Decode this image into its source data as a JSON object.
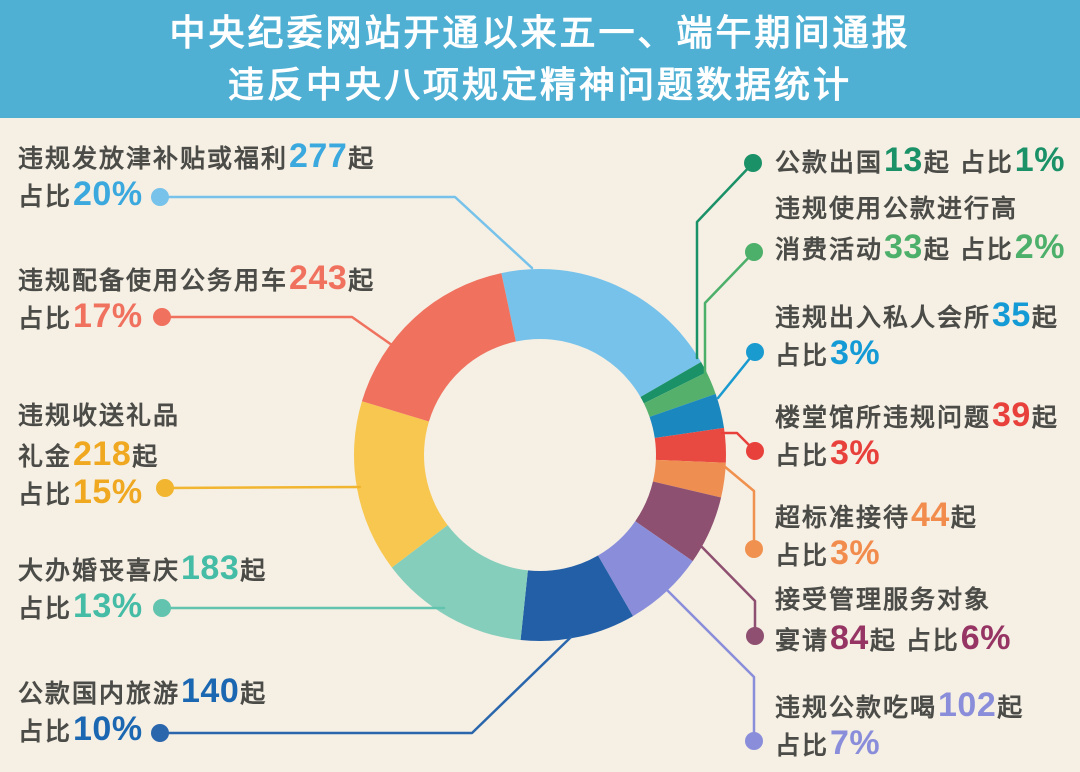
{
  "title": {
    "line1": "中央纪委网站开通以来五一、端午期间通报",
    "line2": "违反中央八项规定精神问题数据统计"
  },
  "colors": {
    "banner_bg": "#4FB0D4",
    "page_bg": "#F5EFE4",
    "body_text": "#4B4B47"
  },
  "chart_data": {
    "type": "pie",
    "subtype": "donut",
    "title": "中央纪委网站开通以来五一、端午期间通报违反中央八项规定精神问题数据统计",
    "unit": "起",
    "start_angle_deg": -12,
    "direction": "clockwise",
    "segments": [
      {
        "id": "subsidies",
        "label": "违规发放津补贴或福利",
        "cases": 277,
        "percent": 20,
        "color": "#76C2EA"
      },
      {
        "id": "abroad-trips",
        "label": "公款出国",
        "cases": 13,
        "percent": 1,
        "color": "#1B9168"
      },
      {
        "id": "luxury-consumption",
        "label": "违规使用公款进行高消费活动",
        "cases": 33,
        "percent": 2,
        "color": "#55B06B"
      },
      {
        "id": "private-clubs",
        "label": "违规出入私人会所",
        "cases": 35,
        "percent": 3,
        "color": "#1A88BF"
      },
      {
        "id": "official-buildings",
        "label": "楼堂馆所违规问题",
        "cases": 39,
        "percent": 3,
        "color": "#E84A42"
      },
      {
        "id": "excessive-reception",
        "label": "超标准接待",
        "cases": 44,
        "percent": 3,
        "color": "#EF8E51"
      },
      {
        "id": "banquets",
        "label": "接受管理服务对象宴请",
        "cases": 84,
        "percent": 6,
        "color": "#8E5070"
      },
      {
        "id": "public-dining",
        "label": "违规公款吃喝",
        "cases": 102,
        "percent": 7,
        "color": "#8A8EDA"
      },
      {
        "id": "domestic-travel",
        "label": "公款国内旅游",
        "cases": 140,
        "percent": 10,
        "color": "#235FA7"
      },
      {
        "id": "weddings-funerals",
        "label": "大办婚丧喜庆",
        "cases": 183,
        "percent": 13,
        "color": "#85CEBB"
      },
      {
        "id": "gifts-money",
        "label": "违规收送礼品礼金",
        "cases": 218,
        "percent": 15,
        "color": "#F8C74F"
      },
      {
        "id": "official-cars",
        "label": "违规配备使用公务用车",
        "cases": 243,
        "percent": 17,
        "color": "#F0715E"
      }
    ]
  },
  "callouts": [
    {
      "id": "subsidies",
      "side": "left",
      "accent": "#3BA8DE",
      "line_color": "#76C2EA",
      "lines": [
        [
          {
            "t": "违规发放津补贴或福利"
          },
          {
            "t": "277",
            "big": true
          },
          {
            "t": "起"
          }
        ],
        [
          {
            "t": "占比"
          },
          {
            "t": "20%",
            "big": true
          }
        ]
      ]
    },
    {
      "id": "official-cars",
      "side": "left",
      "accent": "#F0715E",
      "line_color": "#F0715E",
      "lines": [
        [
          {
            "t": "违规配备使用公务用车"
          },
          {
            "t": "243",
            "big": true
          },
          {
            "t": "起"
          }
        ],
        [
          {
            "t": "占比"
          },
          {
            "t": "17%",
            "big": true
          }
        ]
      ]
    },
    {
      "id": "gifts-money",
      "side": "left",
      "accent": "#EFA81F",
      "line_color": "#F2B52F",
      "lines": [
        [
          {
            "t": "违规收送礼品"
          }
        ],
        [
          {
            "t": "礼金"
          },
          {
            "t": "218",
            "big": true
          },
          {
            "t": "起"
          }
        ],
        [
          {
            "t": "占比"
          },
          {
            "t": "15%",
            "big": true
          }
        ]
      ]
    },
    {
      "id": "weddings-funerals",
      "side": "left",
      "accent": "#45BCA5",
      "line_color": "#62C4AE",
      "lines": [
        [
          {
            "t": "大办婚丧喜庆"
          },
          {
            "t": "183",
            "big": true
          },
          {
            "t": "起"
          }
        ],
        [
          {
            "t": "占比"
          },
          {
            "t": "13%",
            "big": true
          }
        ]
      ]
    },
    {
      "id": "domestic-travel",
      "side": "left",
      "accent": "#1B67B1",
      "line_color": "#2A66AC",
      "lines": [
        [
          {
            "t": "公款国内旅游"
          },
          {
            "t": "140",
            "big": true
          },
          {
            "t": "起"
          }
        ],
        [
          {
            "t": "占比"
          },
          {
            "t": "10%",
            "big": true
          }
        ]
      ]
    },
    {
      "id": "abroad-trips",
      "side": "right",
      "accent": "#1B9168",
      "line_color": "#1B9168",
      "lines": [
        [
          {
            "t": "公款出国"
          },
          {
            "t": "13",
            "big": true
          },
          {
            "t": "起 占比"
          },
          {
            "t": "1%",
            "big": true
          }
        ]
      ]
    },
    {
      "id": "luxury-consumption",
      "side": "right",
      "accent": "#4CAF6A",
      "line_color": "#4CAF6A",
      "lines": [
        [
          {
            "t": "违规使用公款进行高"
          }
        ],
        [
          {
            "t": "消费活动"
          },
          {
            "t": "33",
            "big": true
          },
          {
            "t": "起 占比"
          },
          {
            "t": "2%",
            "big": true
          }
        ]
      ]
    },
    {
      "id": "private-clubs",
      "side": "right",
      "accent": "#149BD6",
      "line_color": "#1A9BD0",
      "lines": [
        [
          {
            "t": "违规出入私人会所"
          },
          {
            "t": "35",
            "big": true
          },
          {
            "t": "起"
          }
        ],
        [
          {
            "t": "占比"
          },
          {
            "t": "3%",
            "big": true
          }
        ]
      ]
    },
    {
      "id": "official-buildings",
      "side": "right",
      "accent": "#E8413C",
      "line_color": "#E8413C",
      "lines": [
        [
          {
            "t": "楼堂馆所违规问题"
          },
          {
            "t": "39",
            "big": true
          },
          {
            "t": "起"
          }
        ],
        [
          {
            "t": "占比"
          },
          {
            "t": "3%",
            "big": true
          }
        ]
      ]
    },
    {
      "id": "excessive-reception",
      "side": "right",
      "accent": "#F28C4D",
      "line_color": "#F0914F",
      "lines": [
        [
          {
            "t": "超标准接待"
          },
          {
            "t": "44",
            "big": true
          },
          {
            "t": "起"
          }
        ],
        [
          {
            "t": "占比"
          },
          {
            "t": "3%",
            "big": true
          }
        ]
      ]
    },
    {
      "id": "banquets",
      "side": "right",
      "accent": "#963564",
      "line_color": "#8E4F70",
      "lines": [
        [
          {
            "t": "接受管理服务对象"
          }
        ],
        [
          {
            "t": "宴请"
          },
          {
            "t": "84",
            "big": true
          },
          {
            "t": "起 占比"
          },
          {
            "t": "6%",
            "big": true
          }
        ]
      ]
    },
    {
      "id": "public-dining",
      "side": "right",
      "accent": "#8A8EDA",
      "line_color": "#8A8EDA",
      "lines": [
        [
          {
            "t": "违规公款吃喝"
          },
          {
            "t": "102",
            "big": true
          },
          {
            "t": "起"
          }
        ],
        [
          {
            "t": "占比"
          },
          {
            "t": "7%",
            "big": true
          }
        ]
      ]
    }
  ]
}
